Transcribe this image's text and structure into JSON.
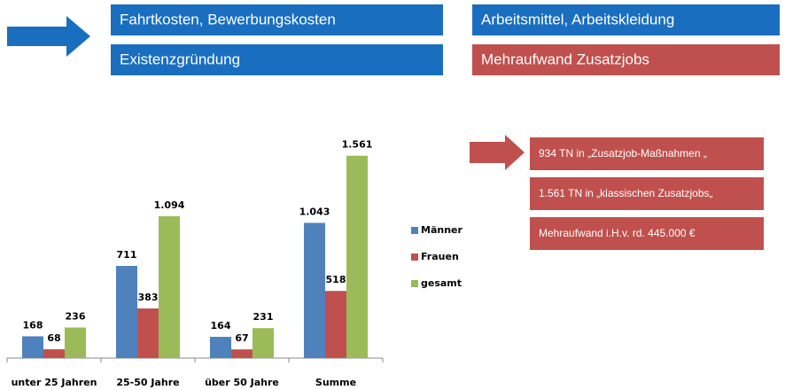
{
  "header_boxes": [
    {
      "text": "Fahrtkosten, Bewerbungskosten",
      "color": "#1a6ec0"
    },
    {
      "text": "Existenzgründung",
      "color": "#1a6ec0"
    },
    {
      "text": "Arbeitsmittel, Arbeitskleidung",
      "color": "#1a6ec0"
    },
    {
      "text": "Mehraufwand Zusatzjobs",
      "color": "#c0504d"
    }
  ],
  "notes": [
    "934 TN in „Zusatzjob-Maßnahmen „",
    "1.561 TN in „klassischen Zusatzjobs„",
    "Mehraufwand i.H.v.  rd. 445.000 €"
  ],
  "chart_data": {
    "type": "bar",
    "categories": [
      "unter 25 Jahren",
      "25-50 Jahre",
      "über 50 Jahre",
      "Summe"
    ],
    "series": [
      {
        "name": "Männer",
        "color": "#4f81bd",
        "values": [
          168,
          711,
          164,
          1043
        ],
        "value_labels": [
          "168",
          "711",
          "164",
          "1.043"
        ]
      },
      {
        "name": "Frauen",
        "color": "#c0504d",
        "values": [
          68,
          383,
          67,
          518
        ]
      },
      {
        "name": "gesamt",
        "color": "#9bbb59",
        "values": [
          236,
          1094,
          231,
          1561
        ],
        "value_labels": [
          "236",
          "1.094",
          "231",
          "1.561"
        ]
      }
    ],
    "ylim": [
      0,
      1600
    ],
    "legend": "right"
  }
}
